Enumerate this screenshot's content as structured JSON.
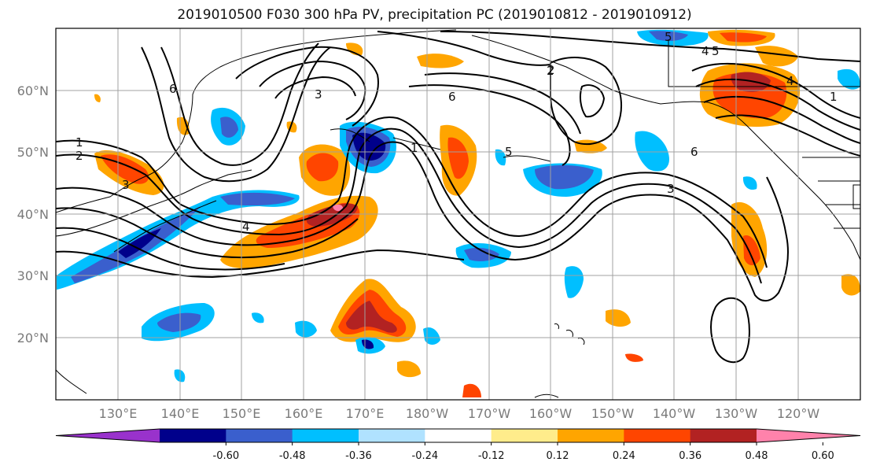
{
  "title": "2019010500 F030 300 hPa PV, precipitation PC (2019010812 - 2019010912)",
  "lat_labels": [
    "60°N",
    "50°N",
    "40°N",
    "30°N",
    "20°N"
  ],
  "lon_labels": [
    "130°E",
    "140°E",
    "150°E",
    "160°E",
    "170°E",
    "180°W",
    "170°W",
    "160°W",
    "150°W",
    "140°W",
    "130°W",
    "120°W"
  ],
  "contour_labels": [
    "1",
    "2",
    "3",
    "4",
    "5",
    "6",
    "1",
    "2",
    "3",
    "4",
    "5",
    "6",
    "1",
    "2",
    "3",
    "4",
    "5",
    "6"
  ],
  "colorbar": {
    "ticks": [
      "-0.60",
      "-0.48",
      "-0.36",
      "-0.24",
      "-0.12",
      "0.12",
      "0.24",
      "0.36",
      "0.48",
      "0.60"
    ],
    "colors": [
      "#9932cc",
      "#00008b",
      "#3a5fcd",
      "#00bfff",
      "#b0e2ff",
      "#ffffff",
      "#ffec8b",
      "#ffa500",
      "#ff4500",
      "#b22222",
      "#ff82ab"
    ]
  },
  "palette": {
    "ocean": "#ffffff",
    "grid": "#a0a0a0",
    "coast": "#000000",
    "contour": "#000000"
  }
}
